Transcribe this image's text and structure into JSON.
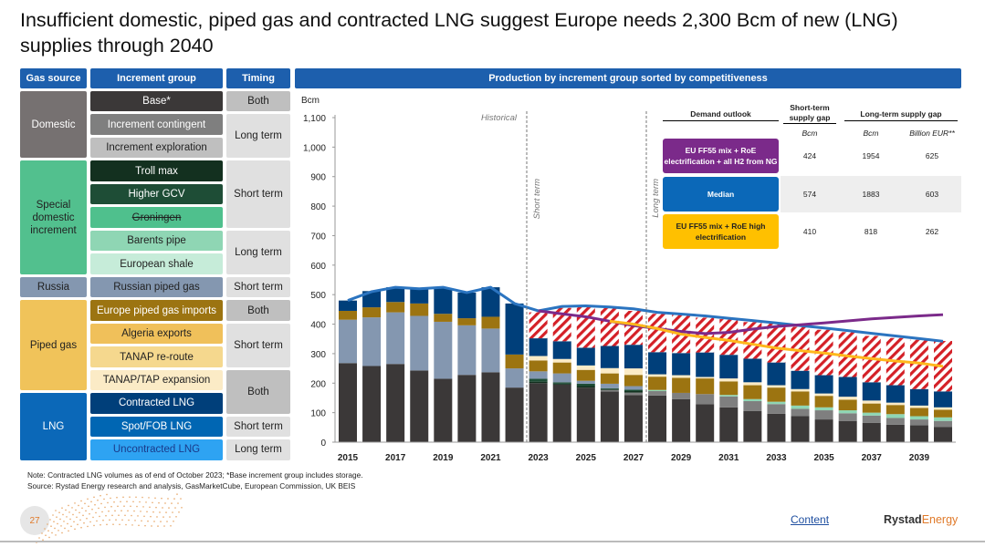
{
  "title": "Insufficient domestic, piped gas and contracted LNG suggest Europe needs 2,300 Bcm of new (LNG) supplies through 2040",
  "legend_table": {
    "headers": [
      "Gas source",
      "Increment group",
      "Timing"
    ],
    "sources": [
      {
        "label": "Domestic",
        "color": "#767171"
      },
      {
        "label": "Special domestic increment",
        "color": "#52c08e"
      },
      {
        "label": "Russia",
        "color": "#8497b0"
      },
      {
        "label": "Piped gas",
        "color": "#f0c35a"
      },
      {
        "label": "LNG",
        "color": "#0b68b8"
      }
    ],
    "timings": [
      "Both",
      "Long term",
      "Short term",
      "Long term",
      "Short term",
      "Both",
      "Short term",
      "Both",
      "Short term",
      "Long term"
    ]
  },
  "chart_header": "Production by increment group sorted by competitiveness",
  "chart_data": {
    "type": "bar",
    "stacked": true,
    "title": "Production by increment group sorted by competitiveness",
    "ylabel": "Bcm",
    "ylim": [
      0,
      1100
    ],
    "yticks": [
      "0",
      "100",
      "200",
      "300",
      "400",
      "500",
      "600",
      "700",
      "800",
      "900",
      "1,000",
      "1,100"
    ],
    "categories": [
      2015,
      2016,
      2017,
      2018,
      2019,
      2020,
      2021,
      2022,
      2023,
      2024,
      2025,
      2026,
      2027,
      2028,
      2029,
      2030,
      2031,
      2032,
      2033,
      2034,
      2035,
      2036,
      2037,
      2038,
      2039,
      2040
    ],
    "xtick_labels": [
      "2015",
      "2017",
      "2019",
      "2021",
      "2023",
      "2025",
      "2027",
      "2029",
      "2031",
      "2033",
      "2035",
      "2037",
      "2039"
    ],
    "annotations": {
      "historical": "Historical",
      "short_term": "Short term",
      "long_term": "Long term"
    },
    "series": [
      {
        "name": "Base*",
        "color": "#3b3838",
        "text": "#fff",
        "values": [
          268,
          258,
          265,
          243,
          215,
          228,
          237,
          185,
          200,
          195,
          185,
          172,
          160,
          158,
          146,
          129,
          118,
          106,
          96,
          88,
          77,
          72,
          65,
          59,
          57,
          51
        ]
      },
      {
        "name": "Increment contingent",
        "color": "#7f7f7f",
        "text": "#fff",
        "values": [
          0,
          0,
          0,
          0,
          0,
          0,
          0,
          0,
          0,
          0,
          0,
          5,
          8,
          15,
          21,
          34,
          37,
          33,
          33,
          25,
          31,
          26,
          25,
          23,
          20,
          21
        ]
      },
      {
        "name": "Increment exploration",
        "color": "#bfbfbf",
        "text": "#222",
        "values": [
          0,
          0,
          0,
          0,
          0,
          0,
          0,
          0,
          0,
          0,
          0,
          0,
          0,
          0,
          0,
          0,
          0,
          0,
          0,
          0,
          0,
          0,
          0,
          0,
          0,
          0
        ]
      },
      {
        "name": "Troll max",
        "color": "#13301f",
        "text": "#fff",
        "values": [
          0,
          0,
          0,
          0,
          0,
          0,
          0,
          0,
          5,
          3,
          5,
          3,
          5,
          0,
          0,
          0,
          0,
          0,
          0,
          0,
          0,
          0,
          0,
          0,
          0,
          0
        ]
      },
      {
        "name": "Higher GCV",
        "color": "#1e4d36",
        "text": "#fff",
        "values": [
          0,
          0,
          0,
          0,
          0,
          0,
          0,
          0,
          10,
          5,
          8,
          3,
          5,
          0,
          0,
          0,
          0,
          0,
          0,
          0,
          0,
          0,
          0,
          0,
          0,
          0
        ]
      },
      {
        "name": "Groningen",
        "color": "#4fc08d",
        "text": "#222",
        "values": [
          0,
          0,
          0,
          0,
          0,
          0,
          0,
          0,
          0,
          0,
          0,
          0,
          0,
          0,
          0,
          0,
          0,
          0,
          0,
          0,
          0,
          0,
          0,
          0,
          0,
          0
        ]
      },
      {
        "name": "Barents pipe",
        "color": "#8fd6b4",
        "text": "#222",
        "values": [
          0,
          0,
          0,
          0,
          0,
          0,
          0,
          0,
          0,
          0,
          0,
          0,
          0,
          4,
          0,
          0,
          5,
          7,
          8,
          11,
          10,
          10,
          10,
          13,
          11,
          12
        ]
      },
      {
        "name": "European shale",
        "color": "#c6ecd9",
        "text": "#222",
        "values": [
          0,
          0,
          0,
          0,
          0,
          0,
          0,
          0,
          0,
          0,
          0,
          0,
          0,
          0,
          0,
          0,
          0,
          0,
          0,
          0,
          0,
          0,
          0,
          0,
          0,
          0
        ]
      },
      {
        "name": "Russian piped gas",
        "color": "#8497b0",
        "text": "#222",
        "values": [
          147,
          165,
          175,
          185,
          193,
          168,
          148,
          65,
          25,
          30,
          10,
          15,
          12,
          0,
          0,
          0,
          0,
          0,
          0,
          0,
          0,
          0,
          0,
          0,
          0,
          0
        ]
      },
      {
        "name": "Europe piped gas imports",
        "color": "#9c7411",
        "text": "#fff",
        "values": [
          30,
          34,
          35,
          42,
          27,
          24,
          40,
          47,
          37,
          37,
          37,
          35,
          38,
          45,
          51,
          53,
          46,
          47,
          48,
          48,
          39,
          36,
          31,
          31,
          28,
          26
        ]
      },
      {
        "name": "Algeria exports",
        "color": "#f0c05a",
        "text": "#222",
        "values": [
          0,
          0,
          0,
          0,
          0,
          0,
          0,
          0,
          0,
          0,
          0,
          0,
          0,
          0,
          0,
          0,
          0,
          0,
          0,
          0,
          0,
          0,
          0,
          0,
          0,
          0
        ]
      },
      {
        "name": "TANAP re-route",
        "color": "#f5d88e",
        "text": "#222",
        "values": [
          0,
          0,
          0,
          0,
          0,
          0,
          0,
          0,
          0,
          0,
          0,
          0,
          0,
          0,
          0,
          0,
          0,
          0,
          0,
          0,
          0,
          0,
          0,
          0,
          0,
          0
        ]
      },
      {
        "name": "TANAP/TAP expansion",
        "color": "#fbebc6",
        "text": "#222",
        "values": [
          0,
          0,
          0,
          0,
          0,
          0,
          0,
          0,
          15,
          12,
          15,
          18,
          22,
          8,
          9,
          5,
          10,
          10,
          8,
          8,
          8,
          10,
          10,
          8,
          8,
          8
        ]
      },
      {
        "name": "Contracted LNG",
        "color": "#003f7a",
        "text": "#fff",
        "values": [
          35,
          55,
          50,
          50,
          87,
          87,
          100,
          173,
          60,
          60,
          60,
          75,
          80,
          75,
          75,
          83,
          80,
          80,
          77,
          62,
          62,
          67,
          62,
          59,
          56,
          54
        ]
      },
      {
        "name": "Spot/FOB LNG",
        "color": "#0066b3",
        "text": "#fff",
        "values": [
          0,
          0,
          0,
          0,
          0,
          0,
          0,
          0,
          0,
          0,
          0,
          0,
          0,
          0,
          0,
          0,
          0,
          0,
          0,
          0,
          0,
          0,
          0,
          0,
          0,
          0
        ]
      },
      {
        "name": "Uncontracted LNG",
        "color": "#2ea3f2",
        "text": "#1a3a8a",
        "hatch": "#d42027",
        "values": [
          0,
          0,
          0,
          0,
          0,
          0,
          0,
          0,
          88,
          113,
          138,
          129,
          115,
          130,
          130,
          118,
          121,
          124,
          132,
          149,
          154,
          152,
          157,
          160,
          167,
          171
        ]
      }
    ],
    "lines": [
      {
        "name": "Median",
        "color": "#2b74c0",
        "start": 2015,
        "values": [
          480,
          510,
          525,
          520,
          525,
          507,
          525,
          470,
          445,
          460,
          462,
          458,
          452,
          440,
          434,
          428,
          420,
          412,
          404,
          395,
          387,
          378,
          369,
          360,
          351,
          342
        ]
      },
      {
        "name": "EU FF55 mix + RoE electrification + all H2 from NG",
        "color": "#7b2a8a",
        "start": 2023,
        "values": [
          445,
          435,
          425,
          410,
          395,
          385,
          375,
          368,
          372,
          383,
          392,
          398,
          404,
          411,
          418,
          423,
          428,
          432
        ]
      },
      {
        "name": "EU FF55 mix + RoE high electrification",
        "color": "#ffb81c",
        "start": 2026,
        "values": [
          410,
          400,
          385,
          366,
          355,
          345,
          332,
          319,
          310,
          302,
          292,
          283,
          275,
          268,
          257
        ]
      }
    ]
  },
  "demand_table": {
    "headers": {
      "demand": "Demand outlook",
      "short": "Short-term supply gap",
      "long": "Long-term supply gap",
      "unit_bcm": "Bcm",
      "unit_eur": "Billion EUR**"
    },
    "rows": [
      {
        "label": "EU FF55 mix + RoE electrification + all H2 from NG",
        "color": "#7b2a8a",
        "short_bcm": "424",
        "long_bcm": "1954",
        "long_eur": "625"
      },
      {
        "label": "Median",
        "color": "#0b68b8",
        "short_bcm": "574",
        "long_bcm": "1883",
        "long_eur": "603"
      },
      {
        "label": "EU FF55 mix + RoE high electrification",
        "color": "#ffc000",
        "short_bcm": "410",
        "long_bcm": "818",
        "long_eur": "262"
      }
    ]
  },
  "footer": {
    "note": "Note: Contracted LNG volumes as of end of October 2023; *Base increment group includes storage.",
    "source": "Source: Rystad Energy research and analysis, GasMarketCube, European Commission, UK BEIS",
    "page": "27",
    "content_link": "Content",
    "logo_a": "Rystad",
    "logo_b": "Energy"
  }
}
